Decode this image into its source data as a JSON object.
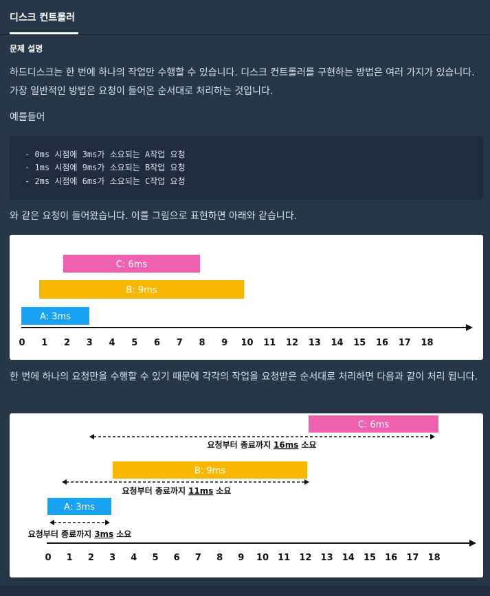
{
  "header": {
    "tab": "디스크 컨트롤러"
  },
  "section_title": "문제 설명",
  "paragraphs": [
    "하드디스크는 한 번에 하나의 작업만 수행할 수 있습니다. 디스크 컨트롤러를 구현하는 방법은 여러 가지가 있습니다. 가장 일반적인 방법은 요청이 들어온 순서대로 처리하는 것입니다.",
    "예를들어"
  ],
  "code_lines": [
    "- 0ms 시점에 3ms가 소요되는 A작업 요청",
    "- 1ms 시점에 9ms가 소요되는 B작업 요청",
    "- 2ms 시점에 6ms가 소요되는 C작업 요청"
  ],
  "paragraph_after_code": "와 같은 요청이 들어왔습니다. 이를 그림으로 표현하면 아래와 같습니다.",
  "figure1": {
    "bars": [
      "A: 3ms",
      "B: 9ms",
      "C: 6ms"
    ],
    "axis_labels": [
      0,
      1,
      2,
      3,
      4,
      5,
      6,
      7,
      8,
      9,
      10,
      11,
      12,
      13,
      14,
      15,
      16,
      17,
      18
    ]
  },
  "paragraph_after_figure1": "한 번에 하나의 요청만을 수행할 수 있기 때문에 각각의 작업을 요청받은 순서대로 처리하면 다음과 같이 처리 됩니다.",
  "figure2": {
    "bars": [
      {
        "label": "A: 3ms",
        "note_before": "요청부터 종료까지",
        "note_duration": "3ms",
        "note_after": "소요"
      },
      {
        "label": "B: 9ms",
        "note_before": "요청부터 종료까지",
        "note_duration": "11ms",
        "note_after": "소요"
      },
      {
        "label": "C: 6ms",
        "note_before": "요청부터 종료까지",
        "note_duration": "16ms",
        "note_after": "소요"
      }
    ],
    "axis_labels": [
      0,
      1,
      2,
      3,
      4,
      5,
      6,
      7,
      8,
      9,
      10,
      11,
      12,
      13,
      14,
      15,
      16,
      17,
      18
    ]
  }
}
